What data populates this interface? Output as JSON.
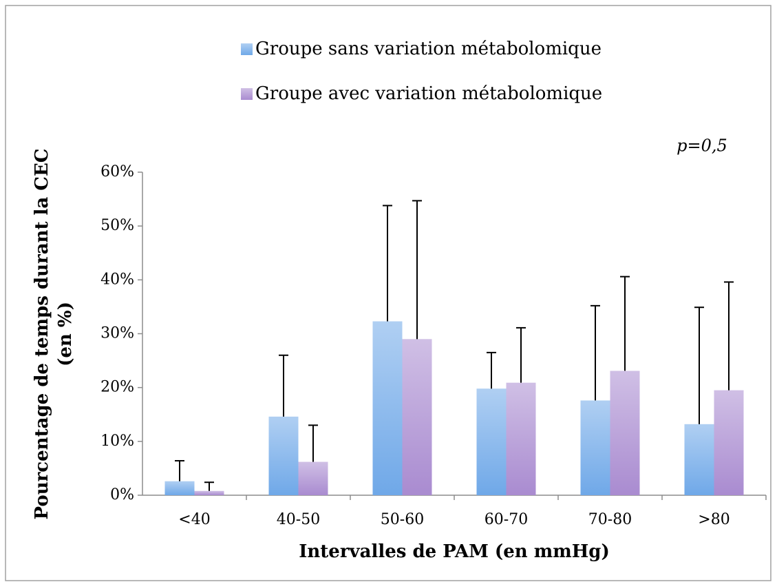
{
  "chart_data": {
    "type": "bar",
    "xlabel": "Intervalles de PAM (en mmHg)",
    "ylabel": [
      "Pourcentage de temps durant la CEC",
      "(en %)"
    ],
    "annotation": "p=0,5",
    "categories": [
      "<40",
      "40-50",
      "50-60",
      "60-70",
      "70-80",
      ">80"
    ],
    "series": [
      {
        "name": "Groupe sans variation métabolomique",
        "color": "#6fa8e8",
        "values": [
          2.6,
          14.6,
          32.3,
          19.8,
          17.6,
          13.2
        ],
        "errors": [
          3.8,
          11.4,
          21.5,
          6.7,
          17.6,
          21.7
        ]
      },
      {
        "name": "Groupe avec variation métabolomique",
        "color": "#a98bd0",
        "values": [
          0.8,
          6.2,
          29.0,
          20.9,
          23.1,
          19.5
        ],
        "errors": [
          1.6,
          6.8,
          25.7,
          10.2,
          17.5,
          20.1
        ]
      }
    ],
    "ylim": [
      0,
      60
    ],
    "yticks": [
      {
        "value": 0,
        "label": "0%"
      },
      {
        "value": 10,
        "label": "10%"
      },
      {
        "value": 20,
        "label": "20%"
      },
      {
        "value": 30,
        "label": "30%"
      },
      {
        "value": 40,
        "label": "40%"
      },
      {
        "value": 50,
        "label": "50%"
      },
      {
        "value": 60,
        "label": "60%"
      }
    ],
    "grid": false
  }
}
